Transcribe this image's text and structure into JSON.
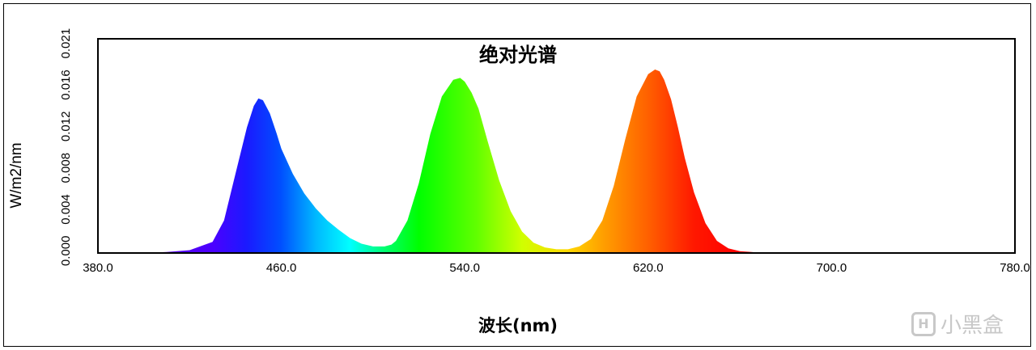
{
  "chart_data": {
    "type": "area",
    "title": "绝对光谱",
    "xlabel": "波长(nm)",
    "ylabel": "W/m2/nm",
    "xlim": [
      380,
      780
    ],
    "ylim": [
      0,
      0.023
    ],
    "x_ticks": [
      "380.0",
      "460.0",
      "540.0",
      "620.0",
      "700.0",
      "780.0"
    ],
    "y_ticks": [
      "0.000",
      "0.004",
      "0.008",
      "0.012",
      "0.016",
      "0.021"
    ],
    "grid": false,
    "fill": "wavelength-rainbow",
    "series": [
      {
        "x": [
          380,
          400,
          410,
          420,
          430,
          435,
          440,
          445,
          448,
          450,
          452,
          455,
          458,
          460,
          465,
          470,
          475,
          480,
          485,
          490,
          495,
          500,
          505,
          508,
          510,
          515,
          520,
          525,
          530,
          535,
          538,
          540,
          543,
          546,
          550,
          555,
          560,
          565,
          570,
          575,
          580,
          585,
          590,
          595,
          600,
          605,
          610,
          615,
          620,
          623,
          625,
          627,
          630,
          633,
          636,
          640,
          645,
          650,
          655,
          660,
          665,
          670,
          680,
          700,
          720,
          780
        ],
        "y": [
          0.0,
          0.0,
          0.0001,
          0.0003,
          0.0012,
          0.0035,
          0.0085,
          0.0135,
          0.0158,
          0.0166,
          0.0164,
          0.015,
          0.0128,
          0.0112,
          0.0085,
          0.0064,
          0.0048,
          0.0035,
          0.0025,
          0.0016,
          0.001,
          0.0007,
          0.0007,
          0.0009,
          0.0013,
          0.0035,
          0.0075,
          0.0128,
          0.0168,
          0.0186,
          0.0188,
          0.0184,
          0.0172,
          0.0155,
          0.012,
          0.0078,
          0.0045,
          0.0023,
          0.0011,
          0.0006,
          0.0004,
          0.0004,
          0.0007,
          0.0015,
          0.0035,
          0.0072,
          0.0122,
          0.0168,
          0.0192,
          0.0197,
          0.0195,
          0.0186,
          0.0165,
          0.0135,
          0.0102,
          0.0065,
          0.0032,
          0.0013,
          0.0005,
          0.0002,
          0.0001,
          0.0,
          0.0,
          0.0,
          0.0,
          0.0
        ]
      }
    ]
  },
  "watermark": {
    "logo": "H",
    "text": "小黑盒"
  }
}
